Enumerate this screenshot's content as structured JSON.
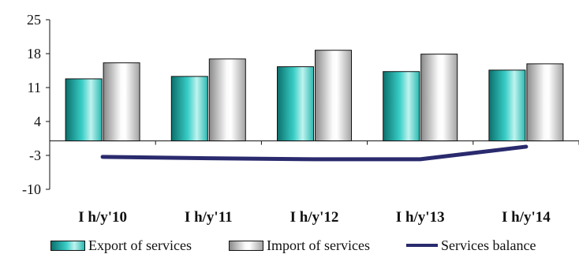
{
  "chart_data": {
    "type": "bar",
    "categories": [
      "I h/y'10",
      "I h/y'11",
      "I h/y'12",
      "I h/y'13",
      "I h/y'14"
    ],
    "series": [
      {
        "name": "Export of services",
        "kind": "bar",
        "color": "#20b5ad",
        "values": [
          12.8,
          13.3,
          15.3,
          14.3,
          14.6
        ]
      },
      {
        "name": "Import of services",
        "kind": "bar",
        "color": "#d9d9d9",
        "values": [
          16.1,
          16.9,
          18.7,
          17.9,
          15.9
        ]
      },
      {
        "name": "Services balance",
        "kind": "line",
        "color": "#2a2a6e",
        "values": [
          -3.3,
          -3.6,
          -3.8,
          -3.8,
          -1.2
        ]
      }
    ],
    "yticks": [
      "25",
      "18",
      "11",
      "4",
      "-3",
      "-10"
    ],
    "ylim": [
      -10,
      25
    ],
    "grid": false,
    "legend_position": "bottom"
  },
  "legend": {
    "export_label": "Export of services",
    "import_label": "Import of services",
    "balance_label": "Services balance"
  }
}
